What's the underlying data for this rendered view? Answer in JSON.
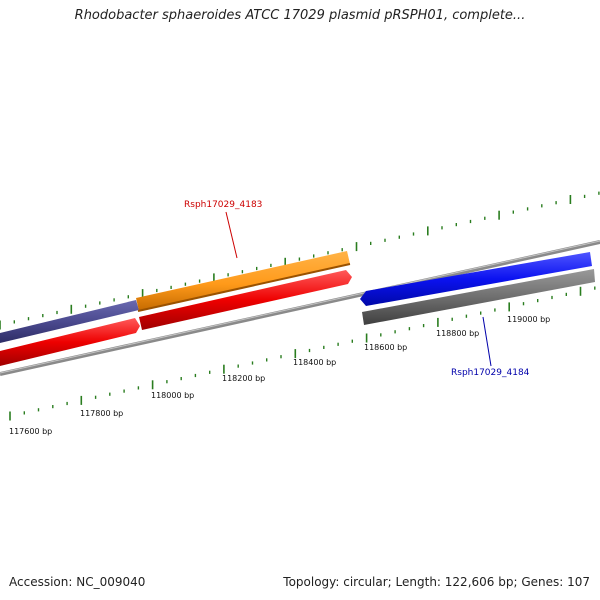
{
  "header": {
    "title": "Rhodobacter sphaeroides ATCC 17029 plasmid pRSPH01, complete..."
  },
  "footer": {
    "accession": "Accession: NC_009040",
    "topology": "Topology: circular; Length: 122,606 bp; Genes: 107"
  },
  "ticks": {
    "labels": [
      "117600 bp",
      "117800 bp",
      "118000 bp",
      "118200 bp",
      "118400 bp",
      "118600 bp",
      "118800 bp",
      "119000 bp"
    ],
    "color": "#2a7d1f"
  },
  "genes": [
    {
      "label": "Rsph17029_4183",
      "color": "#cc0000"
    },
    {
      "label": "Rsph17029_4184",
      "color": "#0000aa"
    }
  ],
  "colors": {
    "navy_feature": "#4b4a8f",
    "orange_feature": "#ff9a1a",
    "red_feature": "#ee0000",
    "blue_feature": "#0b12f0",
    "gray_feature": "#6f6f6f",
    "backbone": "#8a8a8a"
  }
}
